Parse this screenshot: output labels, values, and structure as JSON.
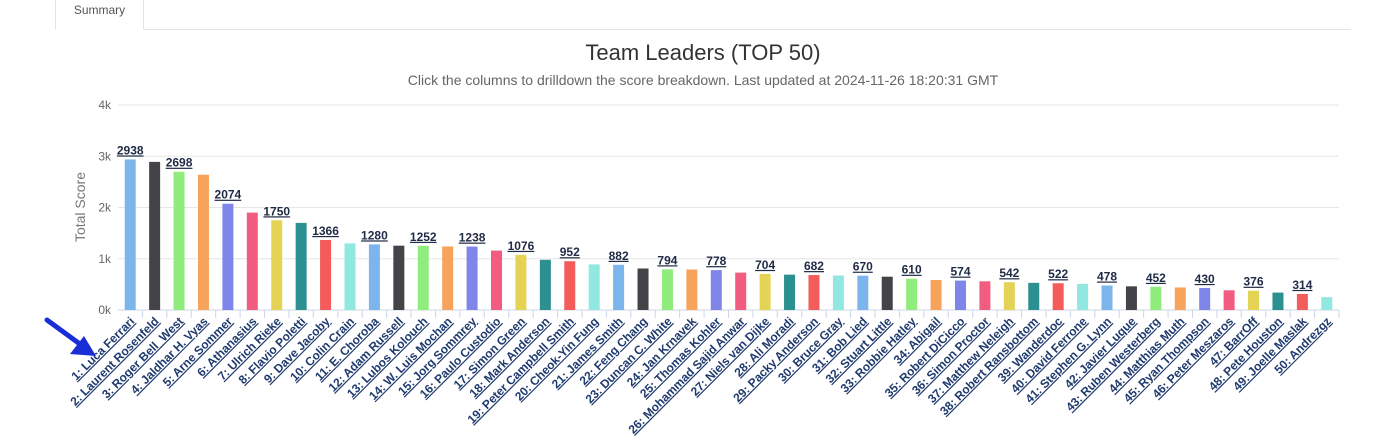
{
  "tabs": [
    {
      "label": "Summary"
    }
  ],
  "chart_data": {
    "type": "bar",
    "title": "Team Leaders (TOP 50)",
    "subtitle": "Click the columns to drilldown the score breakdown. Last updated at 2024-11-26 18:20:31 GMT",
    "ylabel": "Total Score",
    "xlabel": "",
    "ylim": [
      0,
      4000
    ],
    "yticks": [
      {
        "v": 0,
        "label": "0k"
      },
      {
        "v": 1000,
        "label": "1k"
      },
      {
        "v": 2000,
        "label": "2k"
      },
      {
        "v": 3000,
        "label": "3k"
      },
      {
        "v": 4000,
        "label": "4k"
      }
    ],
    "grid": true,
    "legend": "none",
    "colors": [
      "#7cb5ec",
      "#434348",
      "#90ed7d",
      "#f7a35c",
      "#8085e9",
      "#f15c80",
      "#e4d354",
      "#2b908f",
      "#f45b5b",
      "#91e8e1"
    ],
    "categories": [
      "1: Luca Ferrari",
      "2: Laurent Rosenfeld",
      "3: Roger Bell_West",
      "4: Jaldhar H. Vyas",
      "5: Arne Sommer",
      "6: Athanasius",
      "7: Ulrich Rieke",
      "8: Flavio Poletti",
      "9: Dave Jacoby",
      "10: Colin Crain",
      "11: E. Choroba",
      "12: Adam Russell",
      "13: Lubos Kolouch",
      "14: W. Luis Mochan",
      "15: Jorg Sommrey",
      "16: Paulo Custodio",
      "17: Simon Green",
      "18: Mark Anderson",
      "19: Peter Campbell Smith",
      "20: Cheok-Yin Fung",
      "21: James Smith",
      "22: Feng Chang",
      "23: Duncan C. White",
      "24: Jan Krnavek",
      "25: Thomas Kohler",
      "26: Mohammad Sajid Anwar",
      "27: Niels van Dijke",
      "28: Ali Moradi",
      "29: Packy Anderson",
      "30: Bruce Gray",
      "31: Bob Lied",
      "32: Stuart Little",
      "33: Robbie Hatley",
      "34: Abigail",
      "35: Robert DiCicco",
      "36: Simon Proctor",
      "37: Matthew Neleigh",
      "38: Robert Ransbottom",
      "39: Wanderdoc",
      "40: David Ferrone",
      "41: Stephen G. Lynn",
      "42: Javier Luque",
      "43: Ruben Westerberg",
      "44: Matthias Muth",
      "45: Ryan Thompson",
      "46: Peter Meszaros",
      "47: BarrOff",
      "48: Pete Houston",
      "49: Joelle Maslak",
      "50: Andrezgz"
    ],
    "values": [
      2938,
      2890,
      2698,
      2640,
      2074,
      1900,
      1750,
      1700,
      1366,
      1300,
      1280,
      1255,
      1252,
      1240,
      1238,
      1160,
      1076,
      980,
      952,
      890,
      882,
      810,
      794,
      790,
      778,
      730,
      704,
      690,
      682,
      672,
      670,
      650,
      610,
      585,
      574,
      560,
      542,
      530,
      522,
      510,
      478,
      462,
      452,
      440,
      430,
      385,
      376,
      340,
      314,
      250
    ],
    "data_labels": [
      "2938",
      "",
      "2698",
      "",
      "2074",
      "",
      "1750",
      "",
      "1366",
      "",
      "1280",
      "",
      "1252",
      "",
      "1238",
      "",
      "1076",
      "",
      "952",
      "",
      "882",
      "",
      "794",
      "",
      "778",
      "",
      "704",
      "",
      "682",
      "",
      "670",
      "",
      "610",
      "",
      "574",
      "",
      "542",
      "",
      "522",
      "",
      "478",
      "",
      "452",
      "",
      "430",
      "",
      "376",
      "",
      "314",
      ""
    ]
  }
}
